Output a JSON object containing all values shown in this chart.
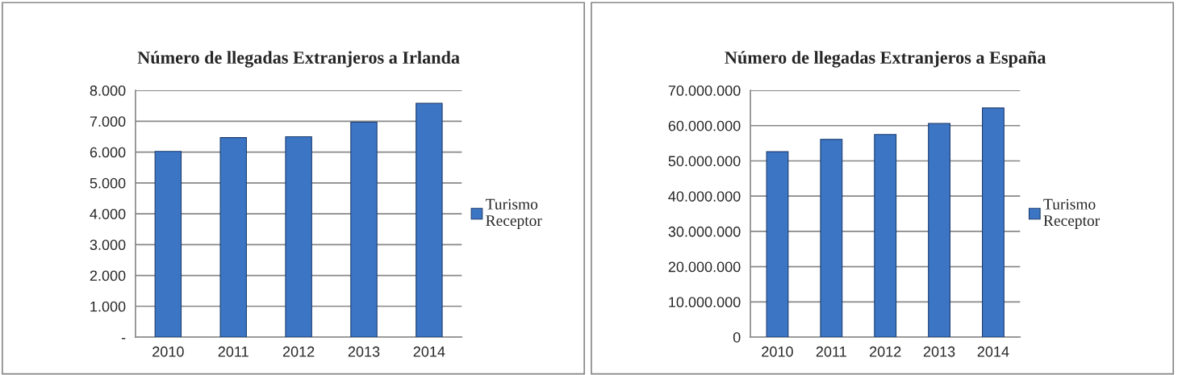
{
  "chart_data": [
    {
      "type": "bar",
      "title": "Número de llegadas Extranjeros a Irlanda",
      "categories": [
        "2010",
        "2011",
        "2012",
        "2013",
        "2014"
      ],
      "series": [
        {
          "name": "Turismo Receptor",
          "color": "#3b75c4",
          "values": [
            6020,
            6470,
            6500,
            6970,
            7580
          ]
        }
      ],
      "ylim": [
        0,
        8000
      ],
      "yticks": [
        {
          "value": 0,
          "label": "-"
        },
        {
          "value": 1000,
          "label": "1.000"
        },
        {
          "value": 2000,
          "label": "2.000"
        },
        {
          "value": 3000,
          "label": "3.000"
        },
        {
          "value": 4000,
          "label": "4.000"
        },
        {
          "value": 5000,
          "label": "5.000"
        },
        {
          "value": 6000,
          "label": "6.000"
        },
        {
          "value": 7000,
          "label": "7.000"
        },
        {
          "value": 8000,
          "label": "8.000"
        }
      ],
      "grid": "y",
      "legend": "right"
    },
    {
      "type": "bar",
      "title": "Número de llegadas Extranjeros a España",
      "categories": [
        "2010",
        "2011",
        "2012",
        "2013",
        "2014"
      ],
      "series": [
        {
          "name": "Turismo Receptor",
          "color": "#3b75c4",
          "values": [
            52600000,
            56100000,
            57500000,
            60600000,
            65000000
          ]
        }
      ],
      "ylim": [
        0,
        70000000
      ],
      "yticks": [
        {
          "value": 0,
          "label": "0"
        },
        {
          "value": 10000000,
          "label": "10.000.000"
        },
        {
          "value": 20000000,
          "label": "20.000.000"
        },
        {
          "value": 30000000,
          "label": "30.000.000"
        },
        {
          "value": 40000000,
          "label": "40.000.000"
        },
        {
          "value": 50000000,
          "label": "50.000.000"
        },
        {
          "value": 60000000,
          "label": "60.000.000"
        },
        {
          "value": 70000000,
          "label": "70.000.000"
        }
      ],
      "grid": "y",
      "legend": "right"
    }
  ]
}
